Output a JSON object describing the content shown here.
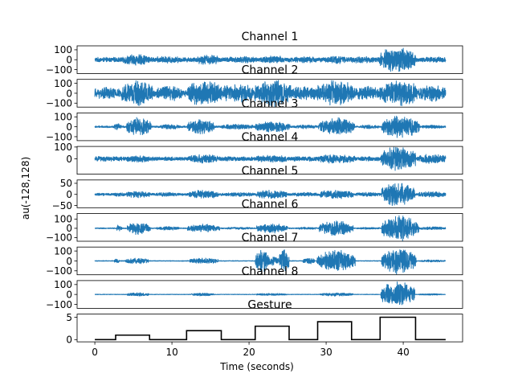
{
  "figure": {
    "ylabel": "au(-128,128)",
    "xlabel": "Time (seconds)"
  },
  "chart_data": {
    "type": "line",
    "xlim": [
      -2.3,
      47.7
    ],
    "x_ticks": [
      0,
      10,
      20,
      30,
      40
    ],
    "x_tick_labels": [
      "0",
      "10",
      "20",
      "30",
      "40"
    ],
    "grid": false,
    "legend": "none",
    "colors": {
      "signal": "#1f77b4",
      "gesture": "#000000"
    },
    "channels": [
      {
        "title": "Channel 1",
        "ylim": [
          -140,
          140
        ],
        "y_ticks": [
          -100,
          0,
          100
        ],
        "y_tick_labels": [
          "−100",
          "0",
          "100"
        ],
        "baseline": 25,
        "bursts": [
          [
            3.7,
            7.1,
            60
          ],
          [
            8,
            11,
            38
          ],
          [
            13.2,
            16.1,
            55
          ],
          [
            17.2,
            21,
            35
          ],
          [
            21.5,
            24.6,
            45
          ],
          [
            26,
            29,
            34
          ],
          [
            30.2,
            32.5,
            45
          ],
          [
            33,
            36.5,
            35
          ],
          [
            36.9,
            41.6,
            140
          ],
          [
            42.2,
            45,
            30
          ]
        ]
      },
      {
        "title": "Channel 2",
        "ylim": [
          -140,
          140
        ],
        "y_ticks": [
          -100,
          0,
          100
        ],
        "y_tick_labels": [
          "−100",
          "0",
          "100"
        ],
        "baseline": 35,
        "bursts": [
          [
            0,
            3.2,
            65
          ],
          [
            3.5,
            7.5,
            140
          ],
          [
            8,
            11.2,
            90
          ],
          [
            12,
            16.5,
            140
          ],
          [
            16.6,
            20.5,
            110
          ],
          [
            20.7,
            25.5,
            140
          ],
          [
            25.5,
            28.8,
            80
          ],
          [
            28.8,
            33.6,
            140
          ],
          [
            33.6,
            37,
            75
          ],
          [
            37,
            41.8,
            140
          ],
          [
            42,
            45.5,
            90
          ]
        ]
      },
      {
        "title": "Channel 3",
        "ylim": [
          -140,
          140
        ],
        "y_ticks": [
          -100,
          0,
          100
        ],
        "y_tick_labels": [
          "−100",
          "0",
          "100"
        ],
        "baseline": 10,
        "bursts": [
          [
            2.5,
            3.4,
            35
          ],
          [
            4.1,
            7.3,
            100
          ],
          [
            8.5,
            11,
            30
          ],
          [
            12,
            15.5,
            90
          ],
          [
            16.5,
            20.5,
            28
          ],
          [
            20.8,
            25.3,
            60
          ],
          [
            26,
            28.8,
            22
          ],
          [
            29,
            33.7,
            95
          ],
          [
            34.5,
            36.8,
            22
          ],
          [
            37.2,
            42.1,
            120
          ],
          [
            42.5,
            45,
            20
          ]
        ]
      },
      {
        "title": "Channel 4",
        "ylim": [
          -130,
          105
        ],
        "y_ticks": [
          0,
          100
        ],
        "y_tick_labels": [
          "0",
          "100"
        ],
        "baseline": 18,
        "bursts": [
          [
            0,
            3.5,
            22
          ],
          [
            4.2,
            7.1,
            30
          ],
          [
            8,
            11,
            18
          ],
          [
            12.2,
            16,
            40
          ],
          [
            16.5,
            20.5,
            20
          ],
          [
            21,
            25,
            32
          ],
          [
            25.8,
            28.8,
            22
          ],
          [
            29,
            33.7,
            42
          ],
          [
            34,
            36.8,
            22
          ],
          [
            37.1,
            41.6,
            115
          ],
          [
            42,
            45.5,
            45
          ]
        ]
      },
      {
        "title": "Channel 5",
        "ylim": [
          -60,
          65
        ],
        "y_ticks": [
          -50,
          0,
          50
        ],
        "y_tick_labels": [
          "−50",
          "0",
          "50"
        ],
        "baseline": 6,
        "bursts": [
          [
            2.5,
            4,
            10
          ],
          [
            4.1,
            7.2,
            16
          ],
          [
            8,
            11,
            10
          ],
          [
            12.2,
            16,
            22
          ],
          [
            17,
            20.5,
            10
          ],
          [
            21,
            24.9,
            22
          ],
          [
            25.5,
            29,
            10
          ],
          [
            29.2,
            33.5,
            22
          ],
          [
            34,
            37,
            10
          ],
          [
            37.2,
            41.5,
            58
          ],
          [
            42,
            45.5,
            14
          ]
        ]
      },
      {
        "title": "Channel 6",
        "ylim": [
          -140,
          160
        ],
        "y_ticks": [
          -100,
          0,
          100
        ],
        "y_tick_labels": [
          "−100",
          "0",
          "100"
        ],
        "baseline": 6,
        "bursts": [
          [
            2.8,
            3.5,
            45
          ],
          [
            4.2,
            7.2,
            70
          ],
          [
            8,
            11,
            22
          ],
          [
            12,
            16.2,
            50
          ],
          [
            17,
            20.5,
            14
          ],
          [
            21,
            25,
            55
          ],
          [
            26,
            28.8,
            14
          ],
          [
            29.1,
            33.5,
            90
          ],
          [
            34,
            37,
            12
          ],
          [
            37.2,
            42,
            150
          ],
          [
            42,
            45.5,
            18
          ]
        ]
      },
      {
        "title": "Channel 7",
        "ylim": [
          -140,
          140
        ],
        "y_ticks": [
          -100,
          0,
          100
        ],
        "y_tick_labels": [
          "−100",
          "0",
          "100"
        ],
        "baseline": 4,
        "bursts": [
          [
            2.5,
            3.2,
            25
          ],
          [
            4,
            7,
            35
          ],
          [
            12.3,
            16,
            32
          ],
          [
            20.8,
            22.6,
            140
          ],
          [
            22.6,
            23.8,
            55
          ],
          [
            23.9,
            25.2,
            130
          ],
          [
            27,
            28.5,
            35
          ],
          [
            28.8,
            33.8,
            115
          ],
          [
            37.2,
            41.7,
            140
          ],
          [
            42.2,
            45.5,
            12
          ]
        ]
      },
      {
        "title": "Channel 8",
        "ylim": [
          -140,
          140
        ],
        "y_ticks": [
          -100,
          0,
          100
        ],
        "y_tick_labels": [
          "−100",
          "0",
          "100"
        ],
        "baseline": 3,
        "bursts": [
          [
            4.2,
            7,
            20
          ],
          [
            12.5,
            15.5,
            18
          ],
          [
            21,
            25,
            14
          ],
          [
            29.2,
            33.5,
            18
          ],
          [
            37.1,
            41.5,
            140
          ],
          [
            42,
            45,
            10
          ]
        ]
      }
    ],
    "gesture": {
      "title": "Gesture",
      "ylim": [
        -0.5,
        5.7
      ],
      "y_ticks": [
        0,
        5
      ],
      "y_tick_labels": [
        "0",
        "5"
      ],
      "steps": [
        [
          0,
          0
        ],
        [
          2.7,
          1
        ],
        [
          7.1,
          0
        ],
        [
          11.9,
          2
        ],
        [
          16.4,
          0
        ],
        [
          20.8,
          3
        ],
        [
          25.2,
          0
        ],
        [
          28.9,
          4
        ],
        [
          33.3,
          0
        ],
        [
          37,
          5
        ],
        [
          41.6,
          0
        ],
        [
          45.5,
          0
        ]
      ]
    }
  }
}
